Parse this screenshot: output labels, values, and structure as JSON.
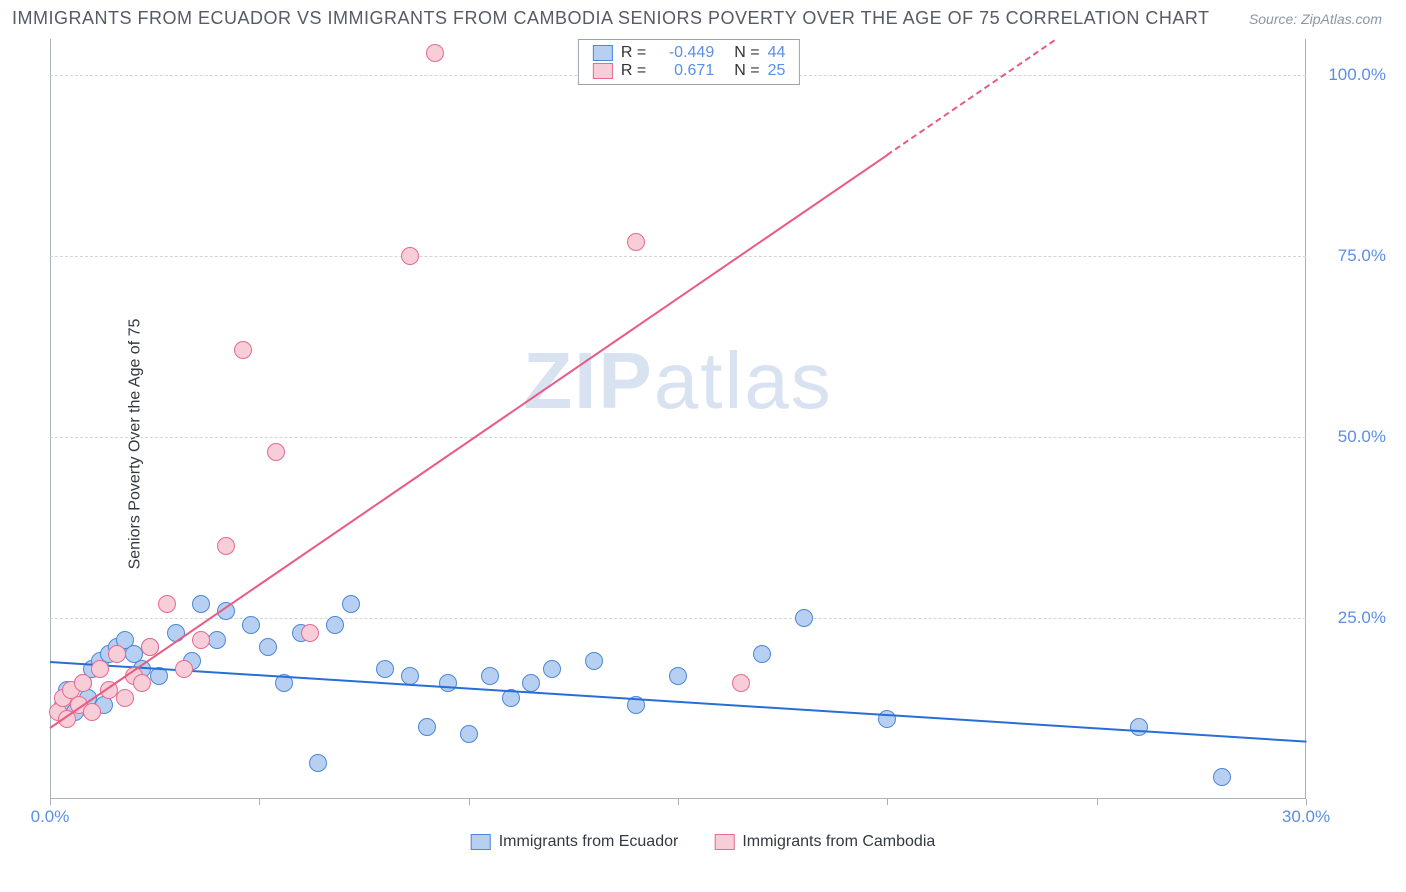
{
  "title": "IMMIGRANTS FROM ECUADOR VS IMMIGRANTS FROM CAMBODIA SENIORS POVERTY OVER THE AGE OF 75 CORRELATION CHART",
  "source": "Source: ZipAtlas.com",
  "ylabel": "Seniors Poverty Over the Age of 75",
  "watermark_a": "ZIP",
  "watermark_b": "atlas",
  "chart": {
    "type": "scatter",
    "xlim": [
      0,
      30
    ],
    "ylim": [
      0,
      105
    ],
    "xticks": [
      0,
      5,
      10,
      15,
      20,
      25,
      30
    ],
    "xtick_labels": [
      "0.0%",
      "",
      "",
      "",
      "",
      "",
      "30.0%"
    ],
    "yticks": [
      25,
      50,
      75,
      100
    ],
    "ytick_labels": [
      "25.0%",
      "50.0%",
      "75.0%",
      "100.0%"
    ],
    "tick_color": "#5a8fe6",
    "marker_radius": 9,
    "series": [
      {
        "name": "Immigrants from Ecuador",
        "fill": "#b7d0f2",
        "stroke": "#4c87da",
        "trend_color": "#276fd6",
        "trend": {
          "x1": 0,
          "y1": 19,
          "x2": 30,
          "y2": 8,
          "dash_after_x": null
        },
        "R": "-0.449",
        "N": "44",
        "points": [
          [
            0.3,
            13
          ],
          [
            0.4,
            15
          ],
          [
            0.6,
            12
          ],
          [
            0.8,
            16
          ],
          [
            0.9,
            14
          ],
          [
            1.0,
            18
          ],
          [
            1.2,
            19
          ],
          [
            1.3,
            13
          ],
          [
            1.4,
            20
          ],
          [
            1.6,
            21
          ],
          [
            1.8,
            22
          ],
          [
            2.0,
            20
          ],
          [
            2.2,
            18
          ],
          [
            2.4,
            21
          ],
          [
            2.6,
            17
          ],
          [
            3.0,
            23
          ],
          [
            3.4,
            19
          ],
          [
            3.6,
            27
          ],
          [
            4.0,
            22
          ],
          [
            4.2,
            26
          ],
          [
            4.8,
            24
          ],
          [
            5.2,
            21
          ],
          [
            5.6,
            16
          ],
          [
            6.0,
            23
          ],
          [
            6.4,
            5
          ],
          [
            6.8,
            24
          ],
          [
            7.2,
            27
          ],
          [
            8.0,
            18
          ],
          [
            8.6,
            17
          ],
          [
            9.0,
            10
          ],
          [
            9.5,
            16
          ],
          [
            10.0,
            9
          ],
          [
            10.5,
            17
          ],
          [
            11.0,
            14
          ],
          [
            11.5,
            16
          ],
          [
            12.0,
            18
          ],
          [
            13.0,
            19
          ],
          [
            14.0,
            13
          ],
          [
            15.0,
            17
          ],
          [
            17.0,
            20
          ],
          [
            18.0,
            25
          ],
          [
            20.0,
            11
          ],
          [
            26.0,
            10
          ],
          [
            28.0,
            3
          ]
        ]
      },
      {
        "name": "Immigrants from Cambodia",
        "fill": "#f7cdd8",
        "stroke": "#e86a8f",
        "trend_color": "#ea5a84",
        "trend": {
          "x1": 0,
          "y1": 10,
          "x2": 24,
          "y2": 105,
          "dash_after_x": 20
        },
        "R": "0.671",
        "N": "25",
        "points": [
          [
            0.2,
            12
          ],
          [
            0.3,
            14
          ],
          [
            0.4,
            11
          ],
          [
            0.5,
            15
          ],
          [
            0.7,
            13
          ],
          [
            0.8,
            16
          ],
          [
            1.0,
            12
          ],
          [
            1.2,
            18
          ],
          [
            1.4,
            15
          ],
          [
            1.6,
            20
          ],
          [
            1.8,
            14
          ],
          [
            2.0,
            17
          ],
          [
            2.2,
            16
          ],
          [
            2.4,
            21
          ],
          [
            2.8,
            27
          ],
          [
            3.2,
            18
          ],
          [
            3.6,
            22
          ],
          [
            4.2,
            35
          ],
          [
            4.6,
            62
          ],
          [
            5.4,
            48
          ],
          [
            6.2,
            23
          ],
          [
            8.6,
            75
          ],
          [
            9.2,
            103
          ],
          [
            14.0,
            77
          ],
          [
            16.5,
            16
          ]
        ]
      }
    ]
  },
  "legend_stats": {
    "label_R": "R =",
    "label_N": "N ="
  }
}
